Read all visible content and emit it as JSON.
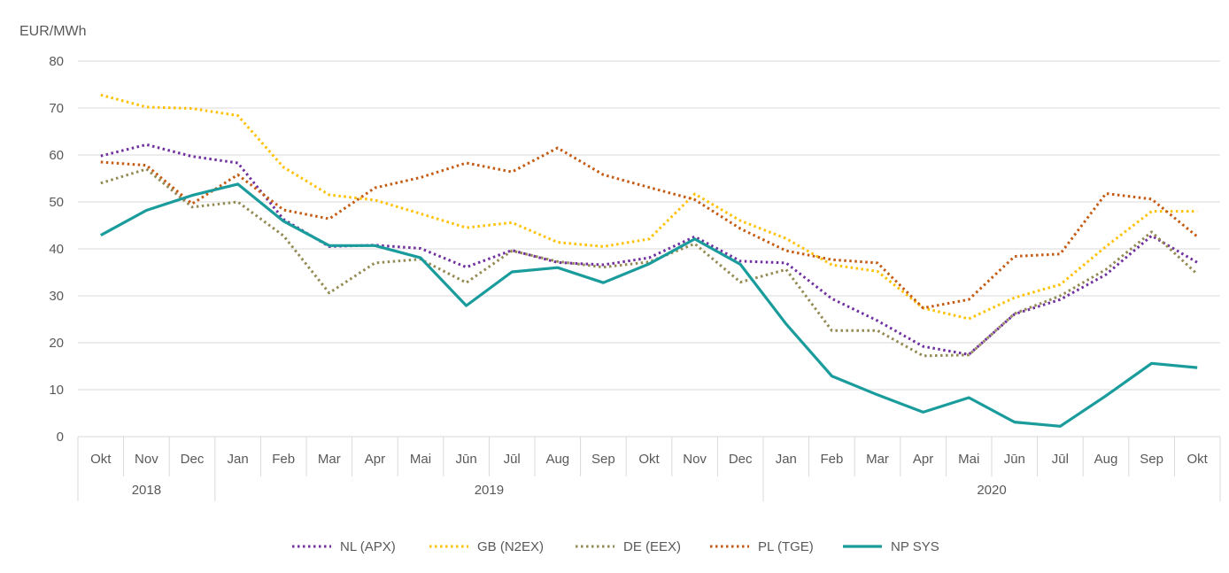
{
  "chart_data": {
    "type": "line",
    "ylabel": "EUR/MWh",
    "ylim": [
      0,
      80
    ],
    "yticks": [
      0,
      10,
      20,
      30,
      40,
      50,
      60,
      70,
      80
    ],
    "grid": "horizontal",
    "legend_position": "bottom",
    "categories": [
      "Okt",
      "Nov",
      "Dec",
      "Jan",
      "Feb",
      "Mar",
      "Apr",
      "Mai",
      "Jūn",
      "Jūl",
      "Aug",
      "Sep",
      "Okt",
      "Nov",
      "Dec",
      "Jan",
      "Feb",
      "Mar",
      "Apr",
      "Mai",
      "Jūn",
      "Jūl",
      "Aug",
      "Sep",
      "Okt"
    ],
    "years": [
      {
        "label": "2018",
        "start": 0,
        "end": 2
      },
      {
        "label": "2019",
        "start": 3,
        "end": 14
      },
      {
        "label": "2020",
        "start": 15,
        "end": 24
      }
    ],
    "series": [
      {
        "name": "NL (APX)",
        "color": "#7030a0",
        "style": "dotted",
        "values": [
          59.8,
          62.2,
          59.7,
          58.3,
          46.3,
          40.5,
          40.8,
          40.1,
          36.1,
          39.7,
          37.1,
          36.6,
          38.1,
          42.6,
          37.4,
          37.0,
          29.4,
          24.7,
          19.2,
          17.5,
          26.1,
          29.2,
          34.5,
          42.8,
          37.1
        ]
      },
      {
        "name": "GB (N2EX)",
        "color": "#ffc000",
        "style": "dotted",
        "values": [
          72.8,
          70.2,
          69.9,
          68.4,
          57.4,
          51.5,
          50.4,
          47.5,
          44.5,
          45.6,
          41.4,
          40.5,
          42.1,
          51.7,
          46.0,
          42.2,
          36.6,
          35.2,
          27.4,
          25.1,
          29.6,
          32.4,
          40.5,
          48.0,
          48.0
        ]
      },
      {
        "name": "DE (EEX)",
        "color": "#948a54",
        "style": "dotted",
        "values": [
          54.0,
          57.0,
          48.9,
          50.0,
          42.8,
          30.6,
          37.0,
          37.8,
          32.8,
          39.6,
          37.3,
          36.1,
          37.2,
          41.1,
          32.9,
          35.6,
          22.6,
          22.6,
          17.2,
          17.4,
          26.2,
          30.0,
          35.6,
          43.6,
          34.6
        ]
      },
      {
        "name": "PL (TGE)",
        "color": "#c55a11",
        "style": "dotted",
        "values": [
          58.5,
          57.8,
          49.6,
          55.8,
          48.3,
          46.4,
          53.0,
          55.2,
          58.3,
          56.4,
          61.5,
          55.8,
          53.1,
          50.5,
          44.3,
          39.6,
          37.7,
          37.0,
          27.4,
          29.2,
          38.4,
          38.9,
          51.8,
          50.6,
          42.6
        ]
      },
      {
        "name": "NP SYS",
        "color": "#1a9c9c",
        "style": "solid",
        "values": [
          42.9,
          48.2,
          51.4,
          53.8,
          45.9,
          40.7,
          40.7,
          38.1,
          27.9,
          35.1,
          36.0,
          32.8,
          36.8,
          42.1,
          36.7,
          24.0,
          12.9,
          8.9,
          5.2,
          8.3,
          3.1,
          2.2,
          8.7,
          15.6,
          14.7
        ]
      }
    ]
  }
}
